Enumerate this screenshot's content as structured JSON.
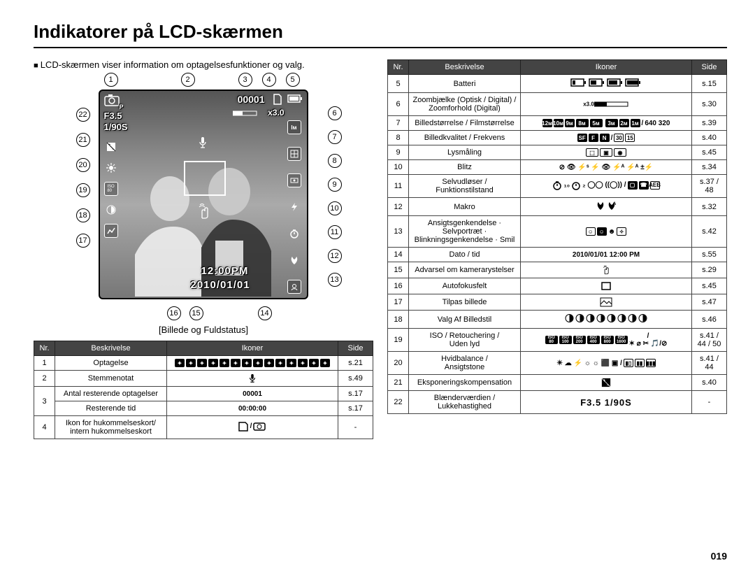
{
  "title": "Indikatorer på LCD-skærmen",
  "intro": "LCD-skærmen viser information om optagelsesfunktioner og valg.",
  "caption": "[Billede og Fuldstatus]",
  "pagenum": "019",
  "lcd": {
    "counter": "00001",
    "zoom": "x3.0",
    "aperture": "F3.5",
    "shutter": "1/90S",
    "time": "12:00PM",
    "date": "2010/01/01"
  },
  "callouts_top": [
    "1",
    "2",
    "3",
    "4",
    "5"
  ],
  "callouts_right": [
    "6",
    "7",
    "8",
    "9",
    "10",
    "11",
    "12",
    "13"
  ],
  "callouts_left": [
    "22",
    "21",
    "20",
    "19",
    "18",
    "17"
  ],
  "callouts_bottom": [
    "16",
    "15",
    "14"
  ],
  "headers": {
    "nr": "Nr.",
    "besk": "Beskrivelse",
    "ikoner": "Ikoner",
    "side": "Side"
  },
  "left_rows": [
    {
      "nr": "1",
      "desc": "Optagelse",
      "icon": "grid14",
      "side": "s.21"
    },
    {
      "nr": "2",
      "desc": "Stemmenotat",
      "icon": "mic",
      "side": "s.49"
    },
    {
      "nr": "3",
      "desc": "Antal resterende optagelser",
      "icon": "text:00001",
      "side": "s.17"
    },
    {
      "nr": "3b",
      "desc": "Resterende tid",
      "icon": "text:00:00:00",
      "side": "s.17"
    },
    {
      "nr": "4",
      "desc": "Ikon for hukommelseskort/\nintern hukommelseskort",
      "icon": "sdcard",
      "side": "-"
    }
  ],
  "right_rows": [
    {
      "nr": "5",
      "desc": "Batteri",
      "icon": "battery4",
      "side": "s.15"
    },
    {
      "nr": "6",
      "desc": "Zoombjælke (Optisk / Digital) /\nZoomforhold (Digital)",
      "icon": "zoombar",
      "side": "s.30"
    },
    {
      "nr": "7",
      "desc": "Billedstørrelse / Filmstørrelse",
      "icon": "sizes",
      "side": "s.39"
    },
    {
      "nr": "8",
      "desc": "Billedkvalitet / Frekvens",
      "icon": "quality",
      "side": "s.40"
    },
    {
      "nr": "9",
      "desc": "Lysmåling",
      "icon": "metering",
      "side": "s.45"
    },
    {
      "nr": "10",
      "desc": "Blitz",
      "icon": "flash",
      "side": "s.34"
    },
    {
      "nr": "11",
      "desc": "Selvudløser /\nFunktionstilstand",
      "icon": "timer",
      "side": "s.37 /\n48"
    },
    {
      "nr": "12",
      "desc": "Makro",
      "icon": "macro",
      "side": "s.32"
    },
    {
      "nr": "13",
      "desc": "Ansigtsgenkendelse ·\nSelvportræt ·\nBlinkningsgenkendelse · Smil",
      "icon": "face",
      "side": "s.42"
    },
    {
      "nr": "14",
      "desc": "Dato / tid",
      "icon": "text:2010/01/01 12:00 PM",
      "side": "s.55"
    },
    {
      "nr": "15",
      "desc": "Advarsel om kamerarystelser",
      "icon": "shake",
      "side": "s.29"
    },
    {
      "nr": "16",
      "desc": "Autofokusfelt",
      "icon": "afbox",
      "side": "s.45"
    },
    {
      "nr": "17",
      "desc": "Tilpas billede",
      "icon": "landscape",
      "side": "s.47"
    },
    {
      "nr": "18",
      "desc": "Valg Af Billedstil",
      "icon": "styles",
      "side": "s.46"
    },
    {
      "nr": "19",
      "desc": "ISO / Retouchering /\nUden lyd",
      "icon": "iso",
      "side": "s.41 /\n44 / 50"
    },
    {
      "nr": "20",
      "desc": "Hvidbalance /\nAnsigtstone",
      "icon": "wb",
      "side": "s.41 /\n44"
    },
    {
      "nr": "21",
      "desc": "Eksponeringskompensation",
      "icon": "expcomp",
      "side": "s.40"
    },
    {
      "nr": "22",
      "desc": "Blænderværdien /\nLukkehastighed",
      "icon": "text-bold:F3.5  1/90S",
      "side": "-"
    }
  ]
}
